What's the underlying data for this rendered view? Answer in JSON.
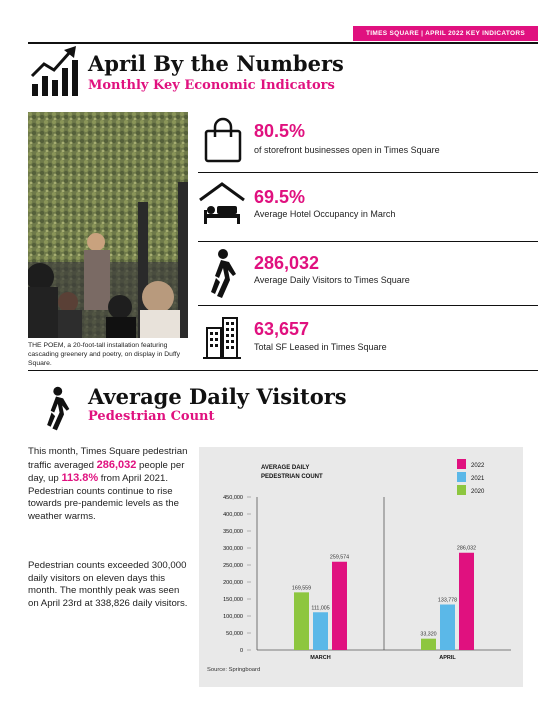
{
  "header": {
    "tag": "TIMES SQUARE | APRIL 2022 KEY INDICATORS",
    "title": "April By the Numbers",
    "subtitle": "Monthly Key Economic Indicators"
  },
  "photo": {
    "caption": "THE POEM, a 20-foot-tall installation featuring cascading greenery and poetry, on display in Duffy Square."
  },
  "kpis": [
    {
      "icon": "shopping-bag-icon",
      "value": "80.5%",
      "label": "of storefront businesses open in Times Square"
    },
    {
      "icon": "hotel-bed-icon",
      "value": "69.5%",
      "label": "Average Hotel Occupancy in March"
    },
    {
      "icon": "pedestrian-icon",
      "value": "286,032",
      "label": "Average Daily Visitors to Times Square"
    },
    {
      "icon": "buildings-icon",
      "value": "63,657",
      "label": "Total SF Leased in Times Square"
    }
  ],
  "visitors": {
    "title": "Average Daily Visitors",
    "subtitle": "Pedestrian Count",
    "para1": {
      "a": "This month, Times Square pedestrian traffic averaged ",
      "b": "286,032",
      "c": " people per day, up ",
      "d": "113.8%",
      "e": " from April 2021.  Pedestrian counts continue to rise towards pre-pandemic levels as the weather warms."
    },
    "para2": "Pedestrian counts exceeded 300,000 daily visitors on eleven days this month.  The monthly peak was seen on April 23rd at 338,826 daily visitors."
  },
  "chart_data": {
    "type": "bar",
    "title": "AVERAGE DAILY PEDESTRIAN COUNT",
    "title_lines": [
      "AVERAGE DAILY",
      "PEDESTRIAN COUNT"
    ],
    "categories": [
      "MARCH",
      "APRIL"
    ],
    "series": [
      {
        "name": "2020",
        "color": "#8dc63f",
        "values": [
          169559,
          33320
        ],
        "labels": [
          "169,559",
          "33,320"
        ]
      },
      {
        "name": "2021",
        "color": "#5bb8e8",
        "values": [
          111005,
          133778
        ],
        "labels": [
          "111,005",
          "133,778"
        ]
      },
      {
        "name": "2022",
        "color": "#e0117f",
        "values": [
          259574,
          286032
        ],
        "labels": [
          "259,574",
          "286,032"
        ]
      }
    ],
    "legend_order": [
      "2022",
      "2021",
      "2020"
    ],
    "ylim": [
      0,
      450000
    ],
    "yticks": [
      0,
      50000,
      100000,
      150000,
      200000,
      250000,
      300000,
      350000,
      400000,
      450000
    ],
    "ytick_labels": [
      "0",
      "50,000",
      "100,000",
      "150,000",
      "200,000",
      "250,000",
      "300,000",
      "350,000",
      "400,000",
      "450,000"
    ],
    "legend_position": "top-right",
    "grid": false,
    "source": "Source: Springboard"
  }
}
